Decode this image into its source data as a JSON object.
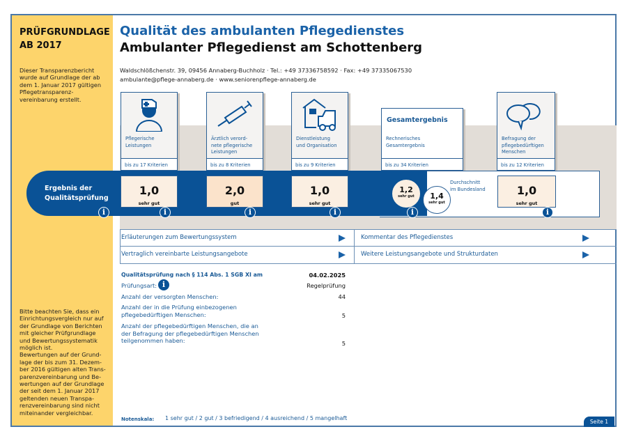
{
  "sidebar": {
    "title_line1": "PRÜFGRUNDLAGE",
    "title_line2": "AB 2017",
    "intro": [
      "Dieser Transparenzbericht",
      "wurde auf Grundlage der ab",
      "dem 1. Januar 2017 gültigen",
      "Pflegetransparenz-",
      "vereinbarung erstellt."
    ],
    "note": [
      "Bitte beachten Sie, dass ein",
      "Einrichtungsvergleich nur auf",
      "der Grundlage von Berichten",
      "mit gleicher Prüfgrundlage",
      "und Bewertungssystematik",
      "möglich ist.",
      "Bewertungen auf der Grund-",
      "lage der bis zum 31. Dezem-",
      "ber 2016 gültigen alten Trans-",
      "parenzvereinbarung und Be-",
      "wertungen auf der Grundlage",
      "der seit dem 1. Januar 2017",
      "geltenden neuen Transpa-",
      "renzvereinbarung sind nicht",
      "miteinander vergleichbar."
    ]
  },
  "header": {
    "title": "Qualität des ambulanten Pflegedienstes",
    "subtitle": "Ambulanter Pflegedienst am Schottenberg",
    "address": "Waldschlößchenstr. 39, 09456 Annaberg-Buchholz · Tel.: +49 37336758592 · Fax: +49 37335067530",
    "web": "ambulante@pflege-annaberg.de · www.seniorenpflege-annaberg.de"
  },
  "result_label": [
    "Ergebnis der",
    "Qualitätsprüfung"
  ],
  "cards": [
    {
      "label": [
        "Pflegerische",
        "Leistungen"
      ],
      "criteria": "bis zu 17 Kriterien",
      "score": "1,0",
      "grade": "sehr gut",
      "icon": "nurse-icon"
    },
    {
      "label": [
        "Ärztlich verord-",
        "nete pflegerische",
        "Leistungen"
      ],
      "criteria": "bis zu 8 Kriterien",
      "score": "2,0",
      "grade": "gut",
      "icon": "syringe-icon"
    },
    {
      "label": [
        "Dienstleistung",
        "und Organisation"
      ],
      "criteria": "bis zu 9 Kriterien",
      "score": "1,0",
      "grade": "sehr gut",
      "icon": "house-car-icon"
    },
    {
      "title": "Gesamtergebnis",
      "label": [
        "Rechnerisches",
        "Gesamtergebnis"
      ],
      "criteria": "bis zu 34 Kriterien",
      "score": "1,2",
      "grade": "sehr gut"
    },
    {
      "label": [
        "Befragung der",
        "pflegebedürftigen",
        "Menschen"
      ],
      "criteria": "bis zu 12 Kriterien",
      "score": "1,0",
      "grade": "sehr gut",
      "icon": "speech-bubbles-icon"
    }
  ],
  "average": {
    "label": [
      "Durchschnitt",
      "im Bundesland"
    ],
    "score": "1,4",
    "grade": "sehr gut"
  },
  "links": [
    "Erläuterungen zum Bewertungssystem",
    "Kommentar des Pflegedienstes",
    "Vertraglich vereinbarte Leistungsangebote",
    "Weitere Leistungsangebote und Strukturdaten"
  ],
  "details": {
    "heading": "Qualitätsprüfung nach § 114 Abs. 1 SGB XI am",
    "date": "04.02.2025",
    "rows": [
      {
        "label": [
          "Prüfungsart:"
        ],
        "value": "Regelprüfung"
      },
      {
        "label": [
          "Anzahl der versorgten Menschen:"
        ],
        "value": "44"
      },
      {
        "label": [
          "Anzahl der in die Prüfung einbezogenen",
          "pflegebedürftigen Menschen:"
        ],
        "value": "5"
      },
      {
        "label": [
          "Anzahl der pflegebedürftigen Menschen, die an",
          "der Befragung der pflegebedürftigen Menschen",
          "teilgenommen haben:"
        ],
        "value": "5"
      }
    ]
  },
  "scale": {
    "label": "Notenskala:",
    "text": "1 sehr gut / 2 gut / 3 befriedigend / 4 ausreichend / 5 mangelhaft"
  },
  "page": "Seite 1",
  "colors": {
    "blue": "#0a5296",
    "yellow": "#fdd46b",
    "score_bg": "#fbefe2"
  }
}
